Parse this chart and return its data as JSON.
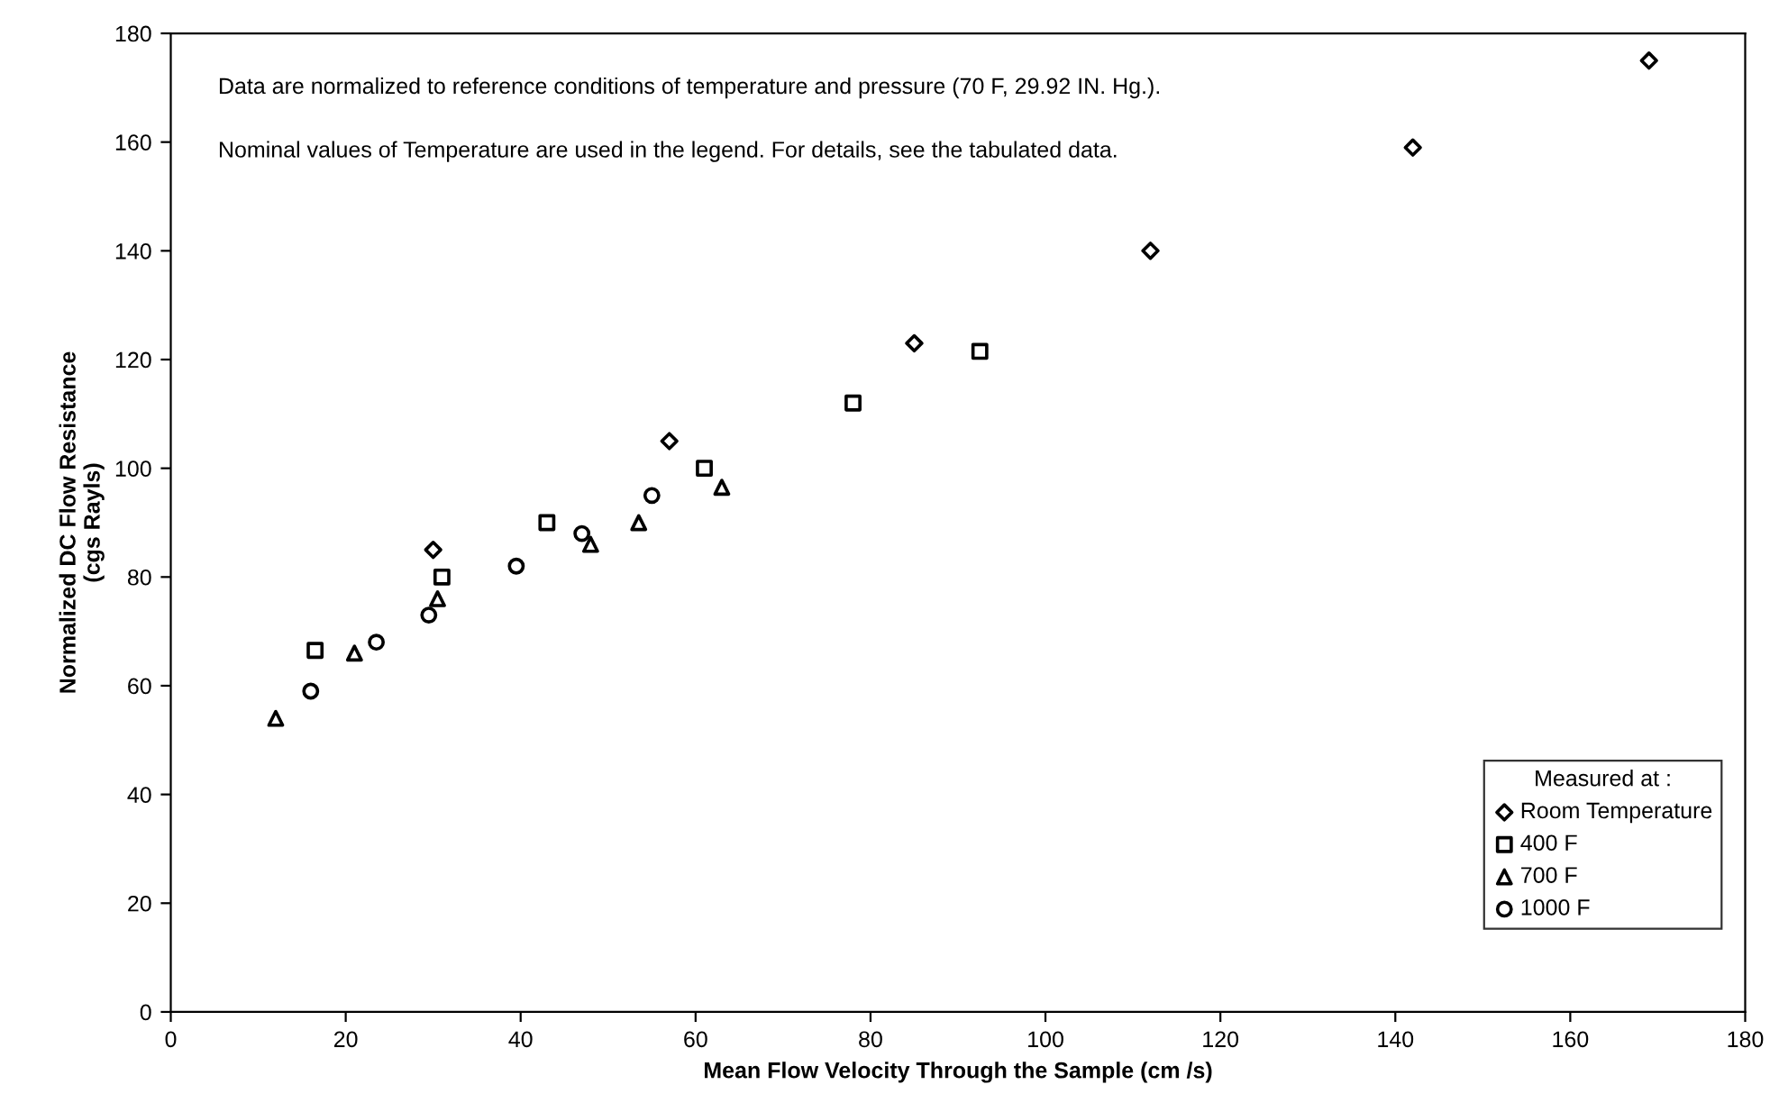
{
  "chart_data": {
    "type": "scatter",
    "xlabel": "Mean Flow Velocity Through the Sample (cm /s)",
    "ylabel": "Normalized DC Flow Resistance\n(cgs Rayls)",
    "legend_title": "Measured at :",
    "legend": "bottom right",
    "grid": false,
    "xlim": [
      0,
      180
    ],
    "xticks": [
      0,
      20,
      40,
      60,
      80,
      100,
      120,
      140,
      160,
      180
    ],
    "ylim": [
      0,
      180
    ],
    "yticks": [
      0,
      20,
      40,
      60,
      80,
      100,
      120,
      140,
      160,
      180
    ],
    "annotations": [
      "Data are normalized to reference conditions of temperature and pressure (70 F, 29.92 IN. Hg.).",
      "Nominal values of Temperature are used in the legend. For details, see the tabulated data."
    ],
    "series": [
      {
        "name": "Room Temperature",
        "color": "#000000",
        "marker": "diamond",
        "x": [
          30,
          57,
          85,
          112,
          142,
          169
        ],
        "values": [
          85,
          105,
          123,
          140,
          159,
          175
        ]
      },
      {
        "name": "400 F",
        "color": "#000000",
        "marker": "square",
        "x": [
          16.5,
          31,
          43,
          61,
          78,
          92.5
        ],
        "values": [
          66.5,
          80,
          90,
          100,
          112,
          121.5
        ]
      },
      {
        "name": "700 F",
        "color": "#000000",
        "marker": "triangle",
        "x": [
          12,
          21,
          30.5,
          48,
          53.5,
          63
        ],
        "values": [
          54,
          66,
          76,
          86,
          90,
          96.5
        ]
      },
      {
        "name": "1000 F",
        "color": "#000000",
        "marker": "circle",
        "x": [
          16,
          23.5,
          29.5,
          39.5,
          47,
          55
        ],
        "values": [
          59,
          68,
          73,
          82,
          88,
          95
        ]
      }
    ]
  }
}
